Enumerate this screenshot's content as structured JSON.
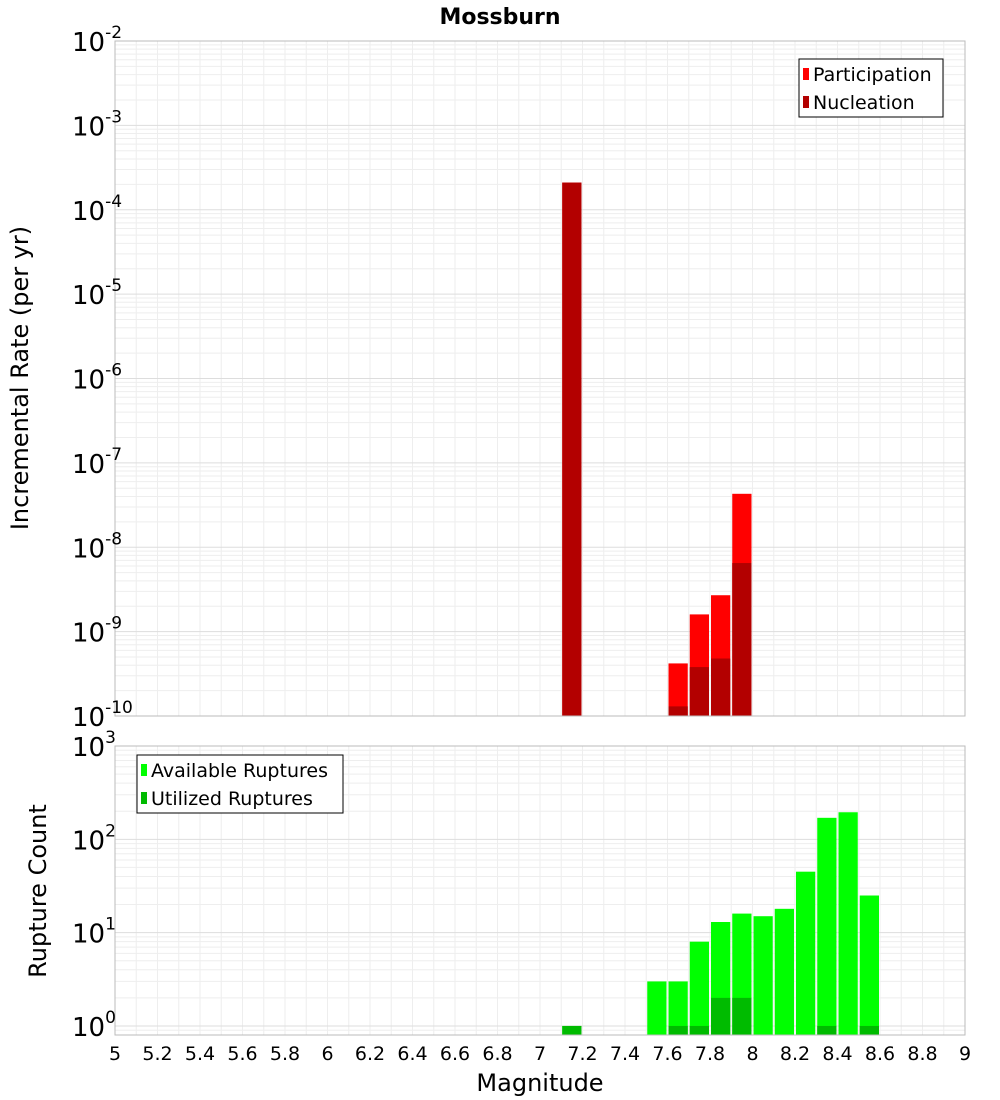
{
  "chart_data": [
    {
      "type": "bar",
      "title": "Mossburn",
      "ylabel": "Incremental Rate (per yr)",
      "yscale": "log",
      "ylim": [
        1e-10,
        0.01
      ],
      "xlim": [
        5,
        9
      ],
      "bin_width": 0.1,
      "grid": true,
      "legend": "top-right",
      "series": [
        {
          "name": "Participation",
          "color": "#ff0000",
          "points": [
            {
              "x": 7.15,
              "y": 0.00021
            },
            {
              "x": 7.65,
              "y": 4.2e-10
            },
            {
              "x": 7.75,
              "y": 1.6e-09
            },
            {
              "x": 7.85,
              "y": 2.7e-09
            },
            {
              "x": 7.95,
              "y": 4.3e-08
            }
          ]
        },
        {
          "name": "Nucleation",
          "color": "#b30000",
          "points": [
            {
              "x": 7.15,
              "y": 0.00021
            },
            {
              "x": 7.65,
              "y": 1.3e-10
            },
            {
              "x": 7.75,
              "y": 3.8e-10
            },
            {
              "x": 7.85,
              "y": 4.8e-10
            },
            {
              "x": 7.95,
              "y": 6.5e-09
            }
          ]
        }
      ]
    },
    {
      "type": "bar",
      "xlabel": "Magnitude",
      "ylabel": "Rupture Count",
      "yscale": "log",
      "ylim": [
        0.8,
        1000
      ],
      "xlim": [
        5,
        9
      ],
      "bin_width": 0.1,
      "grid": true,
      "legend": "top-left",
      "xticks": [
        "5",
        "5.2",
        "5.4",
        "5.6",
        "5.8",
        "6",
        "6.2",
        "6.4",
        "6.6",
        "6.8",
        "7",
        "7.2",
        "7.4",
        "7.6",
        "7.8",
        "8",
        "8.2",
        "8.4",
        "8.6",
        "8.8",
        "9"
      ],
      "series": [
        {
          "name": "Available Ruptures",
          "color": "#00ff00",
          "points": [
            {
              "x": 7.15,
              "y": 1
            },
            {
              "x": 7.55,
              "y": 3
            },
            {
              "x": 7.65,
              "y": 3
            },
            {
              "x": 7.75,
              "y": 8
            },
            {
              "x": 7.85,
              "y": 13
            },
            {
              "x": 7.95,
              "y": 16
            },
            {
              "x": 8.05,
              "y": 15
            },
            {
              "x": 8.15,
              "y": 18
            },
            {
              "x": 8.25,
              "y": 45
            },
            {
              "x": 8.35,
              "y": 170
            },
            {
              "x": 8.45,
              "y": 195
            },
            {
              "x": 8.55,
              "y": 25
            }
          ]
        },
        {
          "name": "Utilized Ruptures",
          "color": "#00bb00",
          "points": [
            {
              "x": 7.15,
              "y": 1
            },
            {
              "x": 7.65,
              "y": 1
            },
            {
              "x": 7.75,
              "y": 1
            },
            {
              "x": 7.85,
              "y": 2
            },
            {
              "x": 7.95,
              "y": 2
            },
            {
              "x": 8.35,
              "y": 1
            },
            {
              "x": 8.55,
              "y": 1
            }
          ]
        }
      ]
    }
  ]
}
